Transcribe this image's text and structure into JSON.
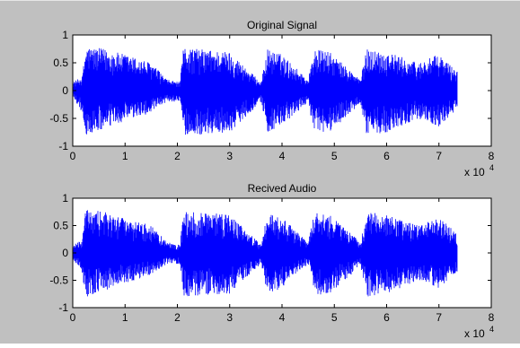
{
  "figure": {
    "background": "#c0c0c0",
    "axes_background": "#ffffff",
    "line_color": "#0000ff"
  },
  "chart_data": [
    {
      "type": "line",
      "title": "Original Signal",
      "xlabel": "",
      "ylabel": "",
      "xlim": [
        0,
        8
      ],
      "ylim": [
        -1,
        1
      ],
      "x_exponent_label": "x 10",
      "x_exponent_sup": "4",
      "xticks": [
        0,
        1,
        2,
        3,
        4,
        5,
        6,
        7,
        8
      ],
      "yticks": [
        1,
        0.5,
        0,
        -0.5,
        -1
      ],
      "xtick_labels": [
        "0",
        "1",
        "2",
        "3",
        "4",
        "5",
        "6",
        "7",
        "8"
      ],
      "ytick_labels": [
        "1",
        "0.5",
        "0",
        "-0.5",
        "-1"
      ],
      "grid": false,
      "signal_end": 7.35,
      "envelope": {
        "x": [
          0.0,
          0.18,
          0.25,
          0.6,
          1.0,
          1.5,
          1.8,
          2.05,
          2.12,
          2.4,
          3.0,
          3.6,
          3.72,
          4.0,
          4.5,
          4.62,
          4.9,
          5.5,
          5.62,
          6.0,
          6.6,
          7.0,
          7.35
        ],
        "upper": [
          0.15,
          0.25,
          0.8,
          0.75,
          0.65,
          0.5,
          0.2,
          0.15,
          0.8,
          0.75,
          0.7,
          0.15,
          0.75,
          0.65,
          0.2,
          0.75,
          0.7,
          0.2,
          0.75,
          0.7,
          0.5,
          0.65,
          0.35
        ],
        "lower": [
          -0.1,
          -0.4,
          -0.82,
          -0.7,
          -0.55,
          -0.4,
          -0.2,
          -0.2,
          -0.8,
          -0.8,
          -0.75,
          -0.2,
          -0.75,
          -0.65,
          -0.2,
          -0.8,
          -0.75,
          -0.25,
          -0.8,
          -0.75,
          -0.5,
          -0.65,
          -0.35
        ]
      }
    },
    {
      "type": "line",
      "title": "Recived Audio",
      "xlabel": "",
      "ylabel": "",
      "xlim": [
        0,
        8
      ],
      "ylim": [
        -1,
        1
      ],
      "x_exponent_label": "x 10",
      "x_exponent_sup": "4",
      "xticks": [
        0,
        1,
        2,
        3,
        4,
        5,
        6,
        7,
        8
      ],
      "yticks": [
        1,
        0.5,
        0,
        -0.5,
        -1
      ],
      "xtick_labels": [
        "0",
        "1",
        "2",
        "3",
        "4",
        "5",
        "6",
        "7",
        "8"
      ],
      "ytick_labels": [
        "1",
        "0.5",
        "0",
        "-0.5",
        "-1"
      ],
      "grid": false,
      "signal_end": 7.35,
      "envelope": {
        "x": [
          0.0,
          0.18,
          0.25,
          0.6,
          1.0,
          1.5,
          1.8,
          2.05,
          2.12,
          2.4,
          3.0,
          3.6,
          3.72,
          4.0,
          4.5,
          4.62,
          4.9,
          5.5,
          5.62,
          6.0,
          6.6,
          7.0,
          7.35
        ],
        "upper": [
          0.15,
          0.25,
          0.8,
          0.75,
          0.65,
          0.5,
          0.2,
          0.15,
          0.8,
          0.75,
          0.7,
          0.15,
          0.75,
          0.65,
          0.2,
          0.75,
          0.7,
          0.2,
          0.75,
          0.7,
          0.5,
          0.65,
          0.35
        ],
        "lower": [
          -0.1,
          -0.4,
          -0.82,
          -0.7,
          -0.55,
          -0.4,
          -0.2,
          -0.2,
          -0.8,
          -0.8,
          -0.75,
          -0.2,
          -0.75,
          -0.65,
          -0.2,
          -0.8,
          -0.75,
          -0.25,
          -0.8,
          -0.75,
          -0.5,
          -0.65,
          -0.35
        ]
      }
    }
  ]
}
